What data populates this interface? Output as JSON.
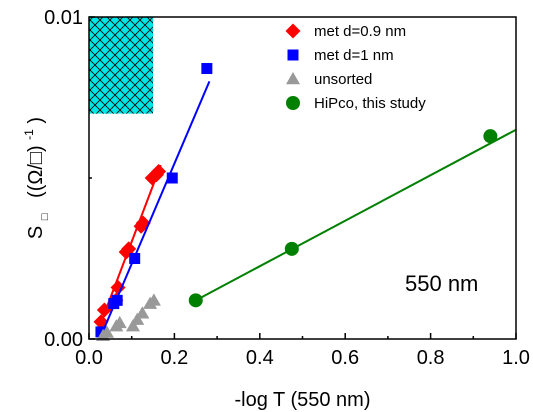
{
  "chart_data": {
    "type": "scatter",
    "title": "",
    "xlabel": "-log T (550 nm)",
    "ylabel_main": "S",
    "ylabel_sub": "□",
    "ylabel_units": "((Ω/□)",
    "ylabel_exp": "-1",
    "ylabel_close": ")",
    "xlim": [
      0.0,
      1.0
    ],
    "ylim": [
      0.0,
      0.01
    ],
    "x_ticks": [
      0.0,
      0.2,
      0.4,
      0.6,
      0.8,
      1.0
    ],
    "x_tick_labels": [
      "0.0",
      "0.2",
      "0.4",
      "0.6",
      "0.8",
      "1.0"
    ],
    "y_ticks": [
      0.0,
      0.01
    ],
    "y_tick_labels": [
      "0.00",
      "0.01"
    ],
    "grid": false,
    "legend_position": "top-right",
    "annotation": "550 nm",
    "hatched_region": {
      "x": [
        0.0,
        0.15
      ],
      "y": [
        0.007,
        0.01
      ],
      "color": "#00e5e5"
    },
    "series": [
      {
        "name": "met d=0.9 nm",
        "marker": "diamond",
        "color": "#ff0000",
        "x": [
          0.028,
          0.036,
          0.063,
          0.068,
          0.087,
          0.093,
          0.122,
          0.127,
          0.148,
          0.158,
          0.163
        ],
        "y": [
          0.00053,
          0.0009,
          0.0012,
          0.0016,
          0.0027,
          0.0028,
          0.0035,
          0.0036,
          0.005,
          0.0051,
          0.0052
        ],
        "fit": {
          "x": [
            0.025,
            0.168
          ],
          "y": [
            0.0004,
            0.0054
          ]
        }
      },
      {
        "name": "met d=1 nm",
        "marker": "square",
        "color": "#0000ff",
        "x": [
          0.028,
          0.058,
          0.066,
          0.107,
          0.195,
          0.276
        ],
        "y": [
          0.00022,
          0.0011,
          0.0012,
          0.0025,
          0.005,
          0.0084
        ],
        "fit": {
          "x": [
            0.025,
            0.282
          ],
          "y": [
            0.0,
            0.008
          ]
        }
      },
      {
        "name": "unsorted",
        "marker": "triangle",
        "color": "#999999",
        "x": [
          0.033,
          0.042,
          0.064,
          0.072,
          0.103,
          0.113,
          0.125,
          0.143,
          0.152
        ],
        "y": [
          0.0001,
          0.0002,
          0.0004,
          0.0005,
          0.0004,
          0.0006,
          0.0008,
          0.0011,
          0.0012
        ]
      },
      {
        "name": "HiPco, this study",
        "marker": "circle",
        "color": "#008000",
        "x": [
          0.25,
          0.475,
          0.94
        ],
        "y": [
          0.0012,
          0.0028,
          0.0063
        ],
        "fit": {
          "x": [
            0.25,
            1.0
          ],
          "y": [
            0.0012,
            0.0065
          ]
        }
      }
    ]
  }
}
